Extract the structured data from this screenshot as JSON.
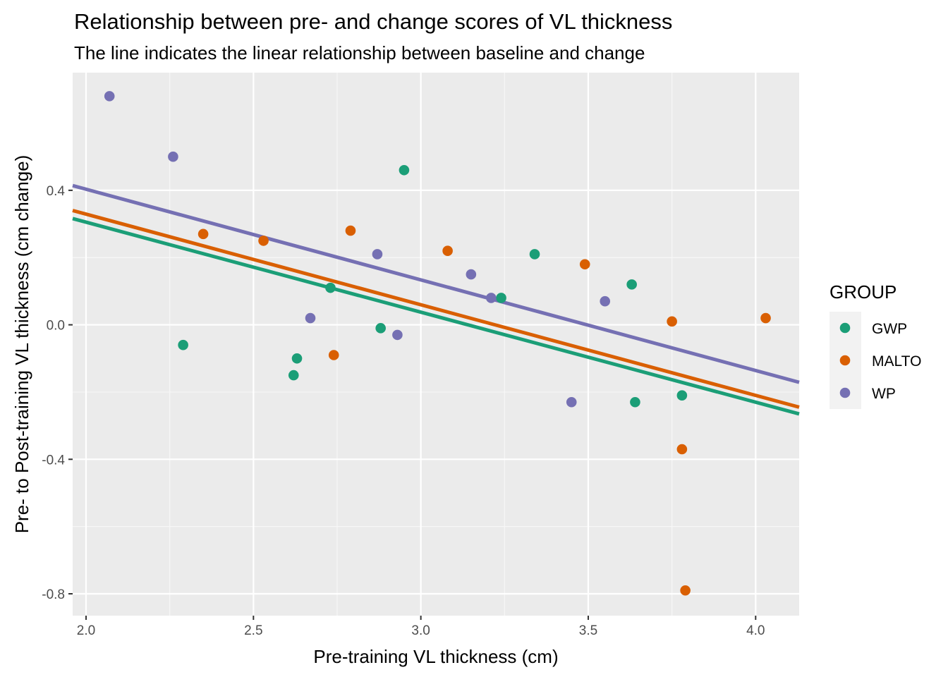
{
  "chart_data": {
    "type": "scatter",
    "title": "Relationship between pre- and change scores of VL thickness",
    "subtitle": "The line indicates the linear relationship between baseline and change",
    "xlabel": "Pre-training VL thickness (cm)",
    "ylabel": "Pre- to Post-training VL thickness (cm change)",
    "xlim": [
      1.96,
      4.13
    ],
    "ylim": [
      -0.865,
      0.75
    ],
    "x_ticks": [
      2.0,
      2.5,
      3.0,
      3.5,
      4.0
    ],
    "x_tick_labels": [
      "2.0",
      "2.5",
      "3.0",
      "3.5",
      "4.0"
    ],
    "y_ticks": [
      -0.8,
      -0.4,
      0.0,
      0.4
    ],
    "y_tick_labels": [
      "-0.8",
      "-0.4",
      "0.0",
      "0.4"
    ],
    "grid": true,
    "background": "#ebebeb",
    "legend": {
      "title": "GROUP",
      "position": "right"
    },
    "series": [
      {
        "name": "GWP",
        "color": "#1b9e77",
        "points": [
          [
            2.29,
            -0.06
          ],
          [
            2.62,
            -0.15
          ],
          [
            2.63,
            -0.1
          ],
          [
            2.73,
            0.11
          ],
          [
            2.88,
            -0.01
          ],
          [
            2.95,
            0.46
          ],
          [
            3.24,
            0.08
          ],
          [
            3.34,
            0.21
          ],
          [
            3.63,
            0.12
          ],
          [
            3.64,
            -0.23
          ],
          [
            3.78,
            -0.21
          ]
        ],
        "fit": [
          [
            1.96,
            0.316
          ],
          [
            4.13,
            -0.265
          ]
        ]
      },
      {
        "name": "MALTO",
        "color": "#d95f02",
        "points": [
          [
            2.35,
            0.27
          ],
          [
            2.53,
            0.25
          ],
          [
            2.74,
            -0.09
          ],
          [
            2.79,
            0.28
          ],
          [
            3.08,
            0.22
          ],
          [
            3.49,
            0.18
          ],
          [
            3.75,
            0.01
          ],
          [
            3.78,
            -0.37
          ],
          [
            3.79,
            -0.79
          ],
          [
            4.03,
            0.02
          ]
        ],
        "fit": [
          [
            1.96,
            0.34
          ],
          [
            4.13,
            -0.245
          ]
        ]
      },
      {
        "name": "WP",
        "color": "#7570b3",
        "points": [
          [
            2.07,
            0.68
          ],
          [
            2.26,
            0.5
          ],
          [
            2.67,
            0.02
          ],
          [
            2.87,
            0.21
          ],
          [
            2.93,
            -0.03
          ],
          [
            3.15,
            0.15
          ],
          [
            3.21,
            0.08
          ],
          [
            3.45,
            -0.23
          ],
          [
            3.55,
            0.07
          ]
        ],
        "fit": [
          [
            1.96,
            0.414
          ],
          [
            4.13,
            -0.171
          ]
        ]
      }
    ]
  }
}
